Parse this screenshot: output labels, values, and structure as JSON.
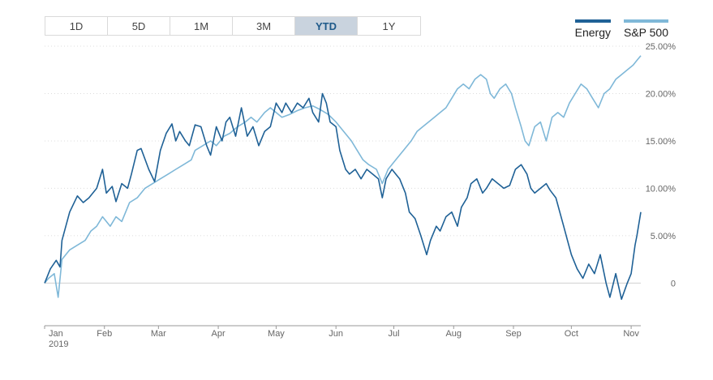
{
  "range_buttons": [
    {
      "label": "1D",
      "active": false
    },
    {
      "label": "5D",
      "active": false
    },
    {
      "label": "1M",
      "active": false
    },
    {
      "label": "3M",
      "active": false
    },
    {
      "label": "YTD",
      "active": true
    },
    {
      "label": "1Y",
      "active": false
    }
  ],
  "chart_data": {
    "type": "line",
    "title": "",
    "xlabel": "",
    "ylabel": "",
    "x_range": [
      "2019-01-01",
      "2019-11-06"
    ],
    "ylim": [
      -4.5,
      25
    ],
    "y_ticks": [
      {
        "value": 25,
        "label": "25.00%"
      },
      {
        "value": 20,
        "label": "20.00%"
      },
      {
        "value": 15,
        "label": "15.00%"
      },
      {
        "value": 10,
        "label": "10.00%"
      },
      {
        "value": 5,
        "label": "5.00%"
      },
      {
        "value": 0,
        "label": "0"
      }
    ],
    "x_ticks": [
      {
        "date": "2019-01-01",
        "label": "Jan",
        "sublabel": "2019"
      },
      {
        "date": "2019-02-01",
        "label": "Feb"
      },
      {
        "date": "2019-03-01",
        "label": "Mar"
      },
      {
        "date": "2019-04-01",
        "label": "Apr"
      },
      {
        "date": "2019-05-01",
        "label": "May"
      },
      {
        "date": "2019-06-01",
        "label": "Jun"
      },
      {
        "date": "2019-07-01",
        "label": "Jul"
      },
      {
        "date": "2019-08-01",
        "label": "Aug"
      },
      {
        "date": "2019-09-01",
        "label": "Sep"
      },
      {
        "date": "2019-10-01",
        "label": "Oct"
      },
      {
        "date": "2019-11-01",
        "label": "Nov"
      }
    ],
    "grid": true,
    "legend_position": "top-right",
    "series": [
      {
        "name": "Energy",
        "color": "#1f6196",
        "points": [
          [
            "2019-01-01",
            0
          ],
          [
            "2019-01-04",
            1.5
          ],
          [
            "2019-01-07",
            2.4
          ],
          [
            "2019-01-09",
            1.7
          ],
          [
            "2019-01-10",
            4.5
          ],
          [
            "2019-01-14",
            7.5
          ],
          [
            "2019-01-18",
            9.2
          ],
          [
            "2019-01-21",
            8.5
          ],
          [
            "2019-01-24",
            9.0
          ],
          [
            "2019-01-28",
            10.0
          ],
          [
            "2019-01-31",
            12.0
          ],
          [
            "2019-02-02",
            9.5
          ],
          [
            "2019-02-05",
            10.2
          ],
          [
            "2019-02-07",
            8.6
          ],
          [
            "2019-02-10",
            10.5
          ],
          [
            "2019-02-13",
            10.0
          ],
          [
            "2019-02-15",
            11.5
          ],
          [
            "2019-02-18",
            14.0
          ],
          [
            "2019-02-20",
            14.2
          ],
          [
            "2019-02-24",
            12.0
          ],
          [
            "2019-02-27",
            10.7
          ],
          [
            "2019-03-02",
            14.0
          ],
          [
            "2019-03-05",
            15.8
          ],
          [
            "2019-03-08",
            16.8
          ],
          [
            "2019-03-10",
            15.0
          ],
          [
            "2019-03-12",
            16.0
          ],
          [
            "2019-03-15",
            15.0
          ],
          [
            "2019-03-17",
            14.5
          ],
          [
            "2019-03-20",
            16.7
          ],
          [
            "2019-03-23",
            16.5
          ],
          [
            "2019-03-26",
            14.5
          ],
          [
            "2019-03-28",
            13.5
          ],
          [
            "2019-03-31",
            16.5
          ],
          [
            "2019-04-03",
            15.0
          ],
          [
            "2019-04-05",
            17.0
          ],
          [
            "2019-04-07",
            17.5
          ],
          [
            "2019-04-10",
            15.5
          ],
          [
            "2019-04-13",
            18.5
          ],
          [
            "2019-04-16",
            15.5
          ],
          [
            "2019-04-19",
            16.5
          ],
          [
            "2019-04-22",
            14.5
          ],
          [
            "2019-04-25",
            16.0
          ],
          [
            "2019-04-28",
            16.5
          ],
          [
            "2019-05-01",
            19.0
          ],
          [
            "2019-05-04",
            18.0
          ],
          [
            "2019-05-06",
            19.0
          ],
          [
            "2019-05-09",
            18.0
          ],
          [
            "2019-05-12",
            19.0
          ],
          [
            "2019-05-15",
            18.5
          ],
          [
            "2019-05-18",
            19.5
          ],
          [
            "2019-05-20",
            18.0
          ],
          [
            "2019-05-23",
            17.0
          ],
          [
            "2019-05-25",
            20.0
          ],
          [
            "2019-05-27",
            19.0
          ],
          [
            "2019-05-29",
            17.0
          ],
          [
            "2019-06-01",
            16.5
          ],
          [
            "2019-06-03",
            14.0
          ],
          [
            "2019-06-06",
            12.0
          ],
          [
            "2019-06-08",
            11.5
          ],
          [
            "2019-06-11",
            12.0
          ],
          [
            "2019-06-14",
            11.0
          ],
          [
            "2019-06-17",
            12.0
          ],
          [
            "2019-06-20",
            11.5
          ],
          [
            "2019-06-23",
            11.0
          ],
          [
            "2019-06-25",
            9.0
          ],
          [
            "2019-06-27",
            11.0
          ],
          [
            "2019-06-30",
            12.0
          ],
          [
            "2019-07-02",
            11.5
          ],
          [
            "2019-07-04",
            11.0
          ],
          [
            "2019-07-07",
            9.5
          ],
          [
            "2019-07-09",
            7.5
          ],
          [
            "2019-07-12",
            6.8
          ],
          [
            "2019-07-15",
            5.0
          ],
          [
            "2019-07-18",
            3.0
          ],
          [
            "2019-07-20",
            4.5
          ],
          [
            "2019-07-23",
            6.0
          ],
          [
            "2019-07-25",
            5.5
          ],
          [
            "2019-07-28",
            7.0
          ],
          [
            "2019-07-31",
            7.5
          ],
          [
            "2019-08-03",
            6.0
          ],
          [
            "2019-08-05",
            8.0
          ],
          [
            "2019-08-08",
            9.0
          ],
          [
            "2019-08-10",
            10.5
          ],
          [
            "2019-08-13",
            11.0
          ],
          [
            "2019-08-16",
            9.5
          ],
          [
            "2019-08-18",
            10.0
          ],
          [
            "2019-08-21",
            11.0
          ],
          [
            "2019-08-24",
            10.5
          ],
          [
            "2019-08-27",
            10.0
          ],
          [
            "2019-08-30",
            10.3
          ],
          [
            "2019-09-02",
            12.0
          ],
          [
            "2019-09-05",
            12.5
          ],
          [
            "2019-09-08",
            11.5
          ],
          [
            "2019-09-10",
            10.0
          ],
          [
            "2019-09-12",
            9.5
          ],
          [
            "2019-09-15",
            10.0
          ],
          [
            "2019-09-18",
            10.5
          ],
          [
            "2019-09-20",
            9.8
          ],
          [
            "2019-09-23",
            9.0
          ],
          [
            "2019-09-25",
            7.5
          ],
          [
            "2019-09-27",
            6.0
          ],
          [
            "2019-09-29",
            4.5
          ],
          [
            "2019-10-01",
            3.0
          ],
          [
            "2019-10-04",
            1.5
          ],
          [
            "2019-10-07",
            0.5
          ],
          [
            "2019-10-10",
            2.0
          ],
          [
            "2019-10-13",
            1.0
          ],
          [
            "2019-10-16",
            3.0
          ],
          [
            "2019-10-19",
            0.0
          ],
          [
            "2019-10-21",
            -1.5
          ],
          [
            "2019-10-24",
            1.0
          ],
          [
            "2019-10-27",
            -1.7
          ],
          [
            "2019-10-30",
            0.0
          ],
          [
            "2019-11-01",
            1.0
          ],
          [
            "2019-11-03",
            4.0
          ],
          [
            "2019-11-04",
            5.0
          ],
          [
            "2019-11-06",
            7.5
          ]
        ]
      },
      {
        "name": "S&P 500",
        "color": "#7fb8d8",
        "points": [
          [
            "2019-01-01",
            0
          ],
          [
            "2019-01-03",
            0.5
          ],
          [
            "2019-01-06",
            1.0
          ],
          [
            "2019-01-08",
            -1.5
          ],
          [
            "2019-01-10",
            2.5
          ],
          [
            "2019-01-14",
            3.5
          ],
          [
            "2019-01-18",
            4.0
          ],
          [
            "2019-01-22",
            4.5
          ],
          [
            "2019-01-25",
            5.5
          ],
          [
            "2019-01-28",
            6.0
          ],
          [
            "2019-01-31",
            7.0
          ],
          [
            "2019-02-04",
            6.0
          ],
          [
            "2019-02-07",
            7.0
          ],
          [
            "2019-02-10",
            6.5
          ],
          [
            "2019-02-14",
            8.5
          ],
          [
            "2019-02-18",
            9.0
          ],
          [
            "2019-02-22",
            10.0
          ],
          [
            "2019-02-26",
            10.5
          ],
          [
            "2019-03-02",
            11.0
          ],
          [
            "2019-03-06",
            11.5
          ],
          [
            "2019-03-10",
            12.0
          ],
          [
            "2019-03-14",
            12.5
          ],
          [
            "2019-03-18",
            13.0
          ],
          [
            "2019-03-20",
            14.0
          ],
          [
            "2019-03-24",
            14.5
          ],
          [
            "2019-03-28",
            15.0
          ],
          [
            "2019-03-31",
            14.5
          ],
          [
            "2019-04-04",
            15.5
          ],
          [
            "2019-04-07",
            15.8
          ],
          [
            "2019-04-11",
            16.5
          ],
          [
            "2019-04-15",
            17.0
          ],
          [
            "2019-04-18",
            17.5
          ],
          [
            "2019-04-21",
            17.0
          ],
          [
            "2019-04-25",
            18.0
          ],
          [
            "2019-04-28",
            18.5
          ],
          [
            "2019-05-01",
            18.0
          ],
          [
            "2019-05-04",
            17.5
          ],
          [
            "2019-05-08",
            17.8
          ],
          [
            "2019-05-12",
            18.2
          ],
          [
            "2019-05-16",
            18.5
          ],
          [
            "2019-05-20",
            18.7
          ],
          [
            "2019-05-24",
            18.3
          ],
          [
            "2019-05-28",
            17.8
          ],
          [
            "2019-06-01",
            17.0
          ],
          [
            "2019-06-05",
            16.0
          ],
          [
            "2019-06-09",
            15.0
          ],
          [
            "2019-06-12",
            14.0
          ],
          [
            "2019-06-15",
            13.0
          ],
          [
            "2019-06-18",
            12.5
          ],
          [
            "2019-06-22",
            12.0
          ],
          [
            "2019-06-25",
            10.5
          ],
          [
            "2019-06-28",
            12.0
          ],
          [
            "2019-07-02",
            13.0
          ],
          [
            "2019-07-06",
            14.0
          ],
          [
            "2019-07-10",
            15.0
          ],
          [
            "2019-07-13",
            16.0
          ],
          [
            "2019-07-16",
            16.5
          ],
          [
            "2019-07-19",
            17.0
          ],
          [
            "2019-07-22",
            17.5
          ],
          [
            "2019-07-25",
            18.0
          ],
          [
            "2019-07-28",
            18.5
          ],
          [
            "2019-07-31",
            19.5
          ],
          [
            "2019-08-03",
            20.5
          ],
          [
            "2019-08-06",
            21.0
          ],
          [
            "2019-08-09",
            20.5
          ],
          [
            "2019-08-12",
            21.5
          ],
          [
            "2019-08-15",
            22.0
          ],
          [
            "2019-08-18",
            21.5
          ],
          [
            "2019-08-20",
            20.0
          ],
          [
            "2019-08-22",
            19.5
          ],
          [
            "2019-08-25",
            20.5
          ],
          [
            "2019-08-28",
            21.0
          ],
          [
            "2019-08-31",
            20.0
          ],
          [
            "2019-09-02",
            18.5
          ],
          [
            "2019-09-05",
            16.5
          ],
          [
            "2019-09-07",
            15.0
          ],
          [
            "2019-09-09",
            14.5
          ],
          [
            "2019-09-12",
            16.5
          ],
          [
            "2019-09-15",
            17.0
          ],
          [
            "2019-09-18",
            15.0
          ],
          [
            "2019-09-21",
            17.5
          ],
          [
            "2019-09-24",
            18.0
          ],
          [
            "2019-09-27",
            17.5
          ],
          [
            "2019-09-30",
            19.0
          ],
          [
            "2019-10-03",
            20.0
          ],
          [
            "2019-10-06",
            21.0
          ],
          [
            "2019-10-09",
            20.5
          ],
          [
            "2019-10-12",
            19.5
          ],
          [
            "2019-10-15",
            18.5
          ],
          [
            "2019-10-18",
            20.0
          ],
          [
            "2019-10-21",
            20.5
          ],
          [
            "2019-10-24",
            21.5
          ],
          [
            "2019-10-27",
            22.0
          ],
          [
            "2019-10-30",
            22.5
          ],
          [
            "2019-11-02",
            23.0
          ],
          [
            "2019-11-04",
            23.5
          ],
          [
            "2019-11-06",
            24.0
          ]
        ]
      }
    ]
  }
}
